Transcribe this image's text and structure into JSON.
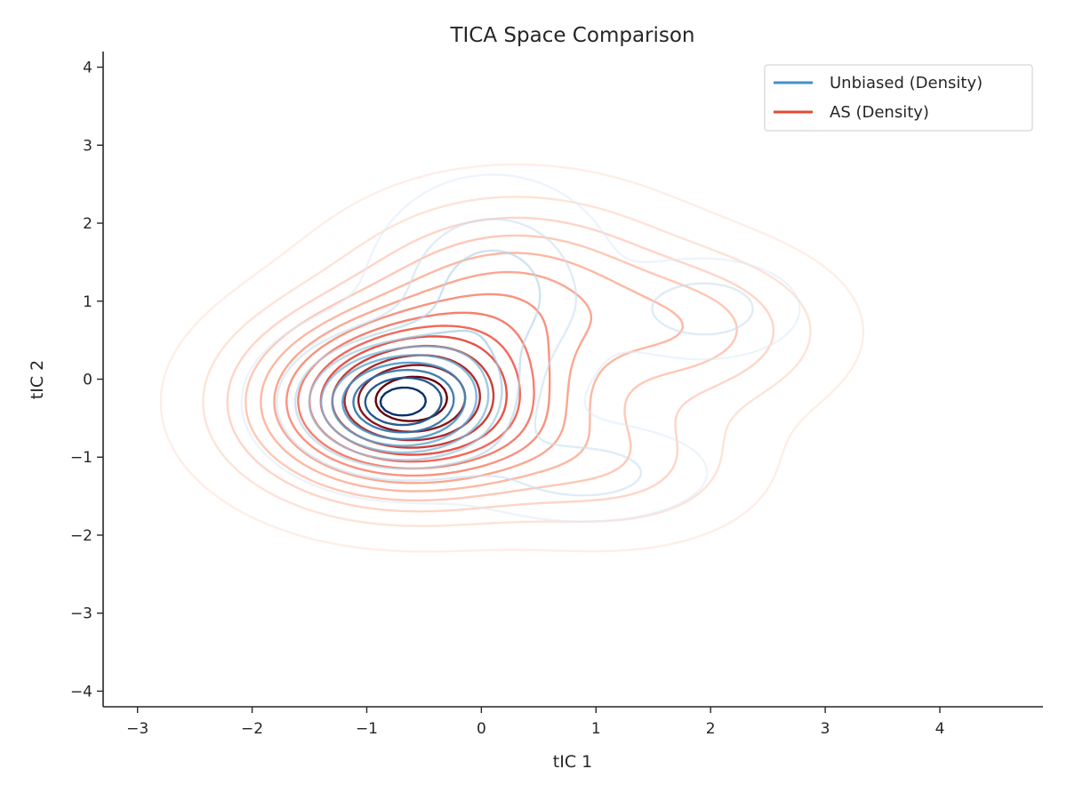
{
  "chart_data": {
    "type": "contour",
    "title": "TICA Space Comparison",
    "xlabel": "tIC 1",
    "ylabel": "tIC 2",
    "xlim": [
      -3.3,
      4.9
    ],
    "ylim": [
      -4.2,
      4.2
    ],
    "xticks": [
      -3,
      -2,
      -1,
      0,
      1,
      2,
      3,
      4
    ],
    "yticks": [
      -4,
      -3,
      -2,
      -1,
      0,
      1,
      2,
      3,
      4
    ],
    "xtick_labels": [
      "−3",
      "−2",
      "−1",
      "0",
      "1",
      "2",
      "3",
      "4"
    ],
    "ytick_labels": [
      "−4",
      "−3",
      "−2",
      "−1",
      "0",
      "1",
      "2",
      "3",
      "4"
    ],
    "grid": false,
    "legend_position": "top-right",
    "series": [
      {
        "name": "Unbiased (Density)",
        "legend_color": "#4292c6",
        "levels": 10,
        "components": [
          {
            "weight": 1.0,
            "center": [
              -0.7,
              -0.3
            ],
            "sigma": [
              0.55,
              0.5
            ]
          },
          {
            "weight": 0.22,
            "center": [
              1.95,
              0.9
            ],
            "sigma": [
              0.45,
              0.35
            ]
          },
          {
            "weight": 0.32,
            "center": [
              0.1,
              1.1
            ],
            "sigma": [
              0.55,
              0.75
            ]
          },
          {
            "weight": 0.2,
            "center": [
              0.9,
              -1.2
            ],
            "sigma": [
              0.6,
              0.35
            ]
          }
        ],
        "color_ramp": [
          "#deebf7",
          "#9ecae1",
          "#4292c6",
          "#08306b"
        ]
      },
      {
        "name": "AS (Density)",
        "legend_color": "#e34a33",
        "levels": 14,
        "components": [
          {
            "weight": 1.0,
            "center": [
              -0.65,
              -0.3
            ],
            "sigma": [
              0.85,
              0.75
            ]
          },
          {
            "weight": 0.35,
            "center": [
              0.3,
              1.2
            ],
            "sigma": [
              0.9,
              0.75
            ]
          },
          {
            "weight": 0.25,
            "center": [
              1.9,
              0.6
            ],
            "sigma": [
              0.75,
              0.65
            ]
          },
          {
            "weight": 0.2,
            "center": [
              1.2,
              -1.1
            ],
            "sigma": [
              0.75,
              0.6
            ]
          }
        ],
        "color_ramp": [
          "#fee0d2",
          "#fc9272",
          "#ef3b2c",
          "#67000d"
        ]
      }
    ]
  }
}
